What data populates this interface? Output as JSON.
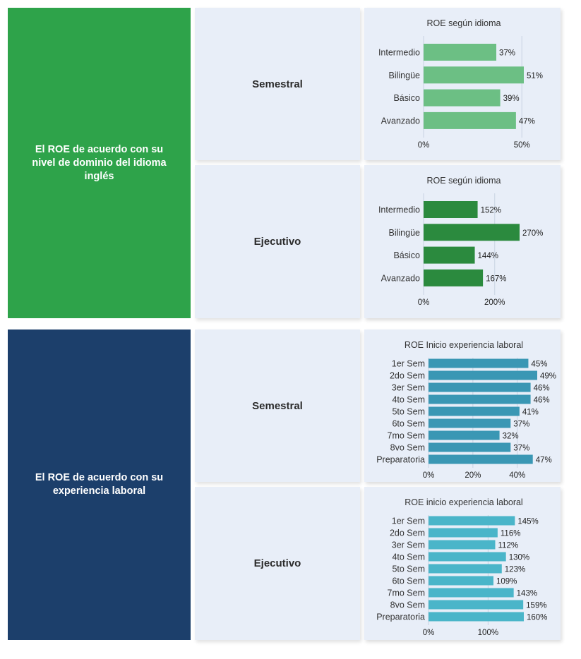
{
  "sections": [
    {
      "label": "El ROE de acuerdo con su nivel de dominio del idioma inglés",
      "color": "#2ea34a",
      "rows": [
        {
          "mode": "Semestral"
        },
        {
          "mode": "Ejecutivo"
        }
      ]
    },
    {
      "label": "El ROE de acuerdo con su experiencia laboral",
      "color": "#1c3f6b",
      "rows": [
        {
          "mode": "Semestral"
        },
        {
          "mode": "Ejecutivo"
        }
      ]
    }
  ],
  "chart_data": [
    {
      "type": "bar",
      "orientation": "horizontal",
      "title": "ROE según idioma",
      "categories": [
        "Intermedio",
        "Bilingüe",
        "Básico",
        "Avanzado"
      ],
      "values": [
        37,
        51,
        39,
        47
      ],
      "value_labels": [
        "37%",
        "51%",
        "39%",
        "47%"
      ],
      "xlim": [
        0,
        51
      ],
      "xticks": [
        "0%",
        "50%"
      ],
      "xtick_values": [
        0,
        50
      ],
      "color": "#6cbf84",
      "grid": true
    },
    {
      "type": "bar",
      "orientation": "horizontal",
      "title": "ROE según idioma",
      "categories": [
        "Intermedio",
        "Bilingüe",
        "Básico",
        "Avanzado"
      ],
      "values": [
        152,
        270,
        144,
        167
      ],
      "value_labels": [
        "152%",
        "270%",
        "144%",
        "167%"
      ],
      "xlim": [
        0,
        270
      ],
      "xticks": [
        "0%",
        "200%"
      ],
      "xtick_values": [
        0,
        200
      ],
      "color": "#2b8a3e",
      "grid": true
    },
    {
      "type": "bar",
      "orientation": "horizontal",
      "title": "ROE Inicio experiencia laboral",
      "categories": [
        "1er Sem",
        "2do Sem",
        "3er Sem",
        "4to Sem",
        "5to Sem",
        "6to Sem",
        "7mo Sem",
        "8vo Sem",
        "Preparatoria"
      ],
      "values": [
        45,
        49,
        46,
        46,
        41,
        37,
        32,
        37,
        47
      ],
      "value_labels": [
        "45%",
        "49%",
        "46%",
        "46%",
        "41%",
        "37%",
        "32%",
        "37%",
        "47%"
      ],
      "xlim": [
        0,
        49
      ],
      "xticks": [
        "0%",
        "20%",
        "40%"
      ],
      "xtick_values": [
        0,
        20,
        40
      ],
      "color": "#3a97b4",
      "grid": true
    },
    {
      "type": "bar",
      "orientation": "horizontal",
      "title": "ROE inicio experiencia laboral",
      "categories": [
        "1er Sem",
        "2do Sem",
        "3er Sem",
        "4to Sem",
        "5to Sem",
        "6to Sem",
        "7mo Sem",
        "8vo Sem",
        "Preparatoria"
      ],
      "values": [
        145,
        116,
        112,
        130,
        123,
        109,
        143,
        159,
        160
      ],
      "value_labels": [
        "145%",
        "116%",
        "112%",
        "130%",
        "123%",
        "109%",
        "143%",
        "159%",
        "160%"
      ],
      "xlim": [
        0,
        160
      ],
      "xticks": [
        "0%",
        "100%"
      ],
      "xtick_values": [
        0,
        100
      ],
      "color": "#4ab5c9",
      "grid": true
    }
  ]
}
